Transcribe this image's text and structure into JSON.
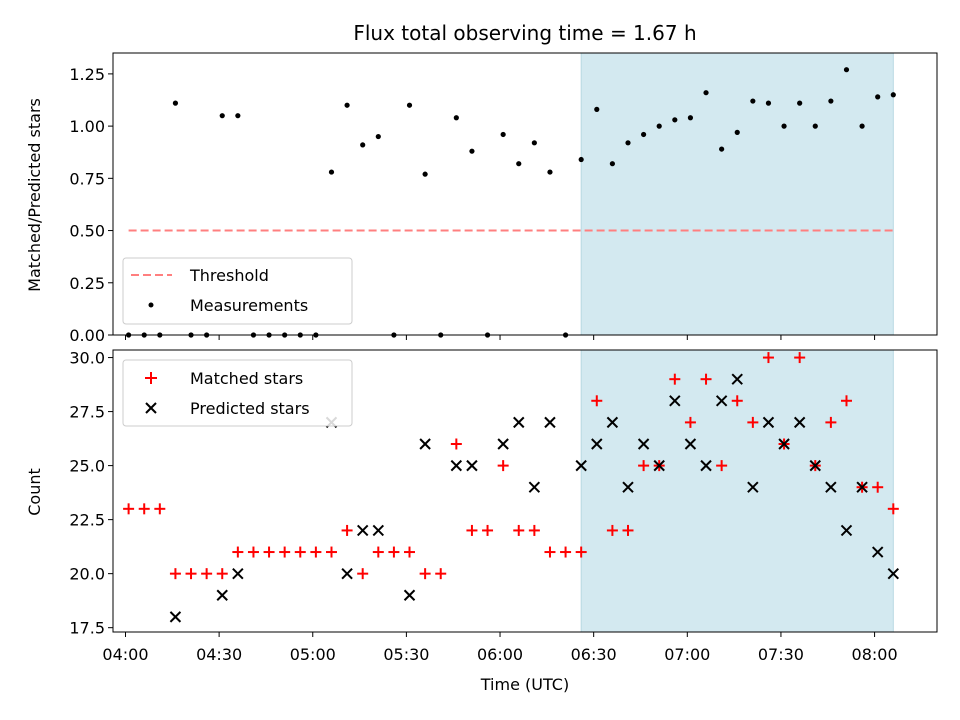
{
  "chart_data": [
    {
      "type": "scatter",
      "panel": "top",
      "title": "Flux total observing time = 1.67 h",
      "ylabel": "Matched/Predicted stars",
      "xlabel": "",
      "x_unit": "time (UTC)",
      "xlim": [
        "03:56",
        "08:20"
      ],
      "ylim": [
        0,
        1.35
      ],
      "yticks": [
        "0.00",
        "0.25",
        "0.50",
        "0.75",
        "1.00",
        "1.25"
      ],
      "shaded_region": {
        "x": [
          "06:26",
          "08:06"
        ],
        "color": "#d3e9f0"
      },
      "legend": {
        "position": "lower-left",
        "entries": [
          "Threshold",
          "Measurements"
        ]
      },
      "threshold": {
        "name": "Threshold",
        "y": 0.5,
        "x": [
          "04:01",
          "08:06"
        ],
        "style": "dashed",
        "color": "#ff7f7f"
      },
      "series": [
        {
          "name": "Measurements",
          "color": "#000000",
          "marker": "dot",
          "points": [
            [
              "04:01",
              0.0
            ],
            [
              "04:06",
              0.0
            ],
            [
              "04:11",
              0.0
            ],
            [
              "04:16",
              1.11
            ],
            [
              "04:21",
              0.0
            ],
            [
              "04:26",
              0.0
            ],
            [
              "04:31",
              1.05
            ],
            [
              "04:36",
              1.05
            ],
            [
              "04:41",
              0.0
            ],
            [
              "04:46",
              0.0
            ],
            [
              "04:51",
              0.0
            ],
            [
              "04:56",
              0.0
            ],
            [
              "05:01",
              0.0
            ],
            [
              "05:06",
              0.78
            ],
            [
              "05:11",
              1.1
            ],
            [
              "05:16",
              0.91
            ],
            [
              "05:21",
              0.95
            ],
            [
              "05:26",
              0.0
            ],
            [
              "05:31",
              1.1
            ],
            [
              "05:36",
              0.77
            ],
            [
              "05:41",
              0.0
            ],
            [
              "05:46",
              1.04
            ],
            [
              "05:51",
              0.88
            ],
            [
              "05:56",
              0.0
            ],
            [
              "06:01",
              0.96
            ],
            [
              "06:06",
              0.82
            ],
            [
              "06:11",
              0.92
            ],
            [
              "06:16",
              0.78
            ],
            [
              "06:21",
              0.0
            ],
            [
              "06:26",
              0.84
            ],
            [
              "06:31",
              1.08
            ],
            [
              "06:36",
              0.82
            ],
            [
              "06:41",
              0.92
            ],
            [
              "06:46",
              0.96
            ],
            [
              "06:51",
              1.0
            ],
            [
              "06:56",
              1.03
            ],
            [
              "07:01",
              1.04
            ],
            [
              "07:06",
              1.16
            ],
            [
              "07:11",
              0.89
            ],
            [
              "07:16",
              0.97
            ],
            [
              "07:21",
              1.12
            ],
            [
              "07:26",
              1.11
            ],
            [
              "07:31",
              1.0
            ],
            [
              "07:36",
              1.11
            ],
            [
              "07:41",
              1.0
            ],
            [
              "07:46",
              1.12
            ],
            [
              "07:51",
              1.27
            ],
            [
              "07:56",
              1.0
            ],
            [
              "08:01",
              1.14
            ],
            [
              "08:06",
              1.15
            ]
          ]
        }
      ]
    },
    {
      "type": "scatter",
      "panel": "bottom",
      "title": "",
      "ylabel": "Count",
      "xlabel": "Time (UTC)",
      "x_unit": "time (UTC)",
      "xlim": [
        "03:56",
        "08:20"
      ],
      "ylim": [
        17.3,
        30.35
      ],
      "yticks": [
        "17.5",
        "20.0",
        "22.5",
        "25.0",
        "27.5",
        "30.0"
      ],
      "xticks": [
        "04:00",
        "04:30",
        "05:00",
        "05:30",
        "06:00",
        "06:30",
        "07:00",
        "07:30",
        "08:00"
      ],
      "shaded_region": {
        "x": [
          "06:26",
          "08:06"
        ],
        "color": "#d3e9f0"
      },
      "legend": {
        "position": "top-left",
        "entries": [
          "Matched stars",
          "Predicted stars"
        ]
      },
      "series": [
        {
          "name": "Matched stars",
          "color": "#ff0000",
          "marker": "plus",
          "points": [
            [
              "04:01",
              23
            ],
            [
              "04:06",
              23
            ],
            [
              "04:11",
              23
            ],
            [
              "04:16",
              20
            ],
            [
              "04:21",
              20
            ],
            [
              "04:26",
              20
            ],
            [
              "04:31",
              20
            ],
            [
              "04:36",
              21
            ],
            [
              "04:41",
              21
            ],
            [
              "04:46",
              21
            ],
            [
              "04:51",
              21
            ],
            [
              "04:56",
              21
            ],
            [
              "05:01",
              21
            ],
            [
              "05:06",
              21
            ],
            [
              "05:11",
              22
            ],
            [
              "05:16",
              20
            ],
            [
              "05:21",
              21
            ],
            [
              "05:26",
              21
            ],
            [
              "05:31",
              21
            ],
            [
              "05:36",
              20
            ],
            [
              "05:41",
              20
            ],
            [
              "05:46",
              26
            ],
            [
              "05:51",
              22
            ],
            [
              "05:56",
              22
            ],
            [
              "06:01",
              25
            ],
            [
              "06:06",
              22
            ],
            [
              "06:11",
              22
            ],
            [
              "06:16",
              21
            ],
            [
              "06:21",
              21
            ],
            [
              "06:26",
              21
            ],
            [
              "06:31",
              28
            ],
            [
              "06:36",
              22
            ],
            [
              "06:41",
              22
            ],
            [
              "06:46",
              25
            ],
            [
              "06:51",
              25
            ],
            [
              "06:56",
              29
            ],
            [
              "07:01",
              27
            ],
            [
              "07:06",
              29
            ],
            [
              "07:11",
              25
            ],
            [
              "07:16",
              28
            ],
            [
              "07:21",
              27
            ],
            [
              "07:26",
              30
            ],
            [
              "07:31",
              26
            ],
            [
              "07:36",
              30
            ],
            [
              "07:41",
              25
            ],
            [
              "07:46",
              27
            ],
            [
              "07:51",
              28
            ],
            [
              "07:56",
              24
            ],
            [
              "08:01",
              24
            ],
            [
              "08:06",
              23
            ]
          ]
        },
        {
          "name": "Predicted stars",
          "color": "#000000",
          "marker": "cross",
          "points": [
            [
              "04:16",
              18
            ],
            [
              "04:31",
              19
            ],
            [
              "04:36",
              20
            ],
            [
              "05:06",
              27
            ],
            [
              "05:11",
              20
            ],
            [
              "05:16",
              22
            ],
            [
              "05:21",
              22
            ],
            [
              "05:31",
              19
            ],
            [
              "05:36",
              26
            ],
            [
              "05:46",
              25
            ],
            [
              "05:51",
              25
            ],
            [
              "06:01",
              26
            ],
            [
              "06:06",
              27
            ],
            [
              "06:11",
              24
            ],
            [
              "06:16",
              27
            ],
            [
              "06:26",
              25
            ],
            [
              "06:31",
              26
            ],
            [
              "06:36",
              27
            ],
            [
              "06:41",
              24
            ],
            [
              "06:46",
              26
            ],
            [
              "06:51",
              25
            ],
            [
              "06:56",
              28
            ],
            [
              "07:01",
              26
            ],
            [
              "07:06",
              25
            ],
            [
              "07:11",
              28
            ],
            [
              "07:16",
              29
            ],
            [
              "07:21",
              24
            ],
            [
              "07:26",
              27
            ],
            [
              "07:31",
              26
            ],
            [
              "07:36",
              27
            ],
            [
              "07:41",
              25
            ],
            [
              "07:46",
              24
            ],
            [
              "07:51",
              22
            ],
            [
              "07:56",
              24
            ],
            [
              "08:01",
              21
            ],
            [
              "08:06",
              20
            ]
          ]
        }
      ]
    }
  ]
}
